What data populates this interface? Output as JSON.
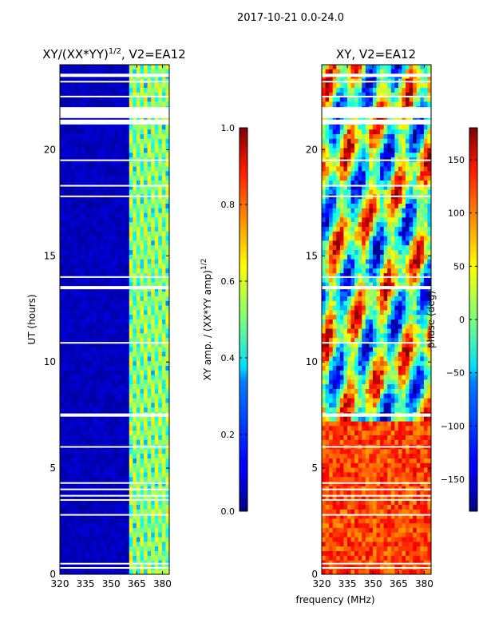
{
  "figure": {
    "suptitle": "2017-10-21 0.0-24.0"
  },
  "chart_data": [
    {
      "type": "heatmap",
      "title": "XY/(XX*YY)",
      "title_sup": "1/2",
      "title_suffix": ", V2=EA12",
      "xlabel": "",
      "ylabel": "UT (hours)",
      "xlim": [
        320,
        384
      ],
      "ylim": [
        0,
        24
      ],
      "x_ticks": [
        320,
        335,
        350,
        365,
        380
      ],
      "y_ticks": [
        0,
        5,
        10,
        15,
        20
      ],
      "colorbar": {
        "label": "XY amp. / (XX*YY amp)",
        "label_sup": "1/2",
        "range": [
          0.0,
          1.0
        ],
        "ticks": [
          "0.0",
          "0.2",
          "0.4",
          "0.6",
          "0.8",
          "1.0"
        ],
        "colormap": "jet"
      },
      "description_values": {
        "low_band_mhz": [
          320,
          361
        ],
        "low_band_value": 0.05,
        "high_band_mhz": [
          361,
          384
        ],
        "high_band_value_range": [
          0.2,
          0.6
        ]
      },
      "flagged_ut_hours": [
        0.3,
        0.5,
        2.8,
        3.5,
        3.7,
        4.0,
        4.3,
        6.0,
        7.5,
        10.9,
        13.5,
        14.0,
        17.8,
        18.3,
        19.5,
        21.3,
        21.6,
        22.5,
        23.2,
        23.5
      ]
    },
    {
      "type": "heatmap",
      "title": "XY, V2=EA12",
      "xlabel": "frequency (MHz)",
      "ylabel": "",
      "xlim": [
        320,
        384
      ],
      "ylim": [
        0,
        24
      ],
      "x_ticks": [
        320,
        335,
        350,
        365,
        380
      ],
      "y_ticks": [
        0,
        5,
        10,
        15,
        20
      ],
      "colorbar": {
        "label": "phase (deg)",
        "range": [
          -180,
          180
        ],
        "ticks": [
          "−150",
          "−100",
          "−50",
          "0",
          "50",
          "100",
          "150"
        ],
        "tick_values": [
          -150,
          -100,
          -50,
          0,
          50,
          100,
          150
        ],
        "colormap": "jet"
      },
      "flagged_ut_hours": [
        0.3,
        0.5,
        2.8,
        3.5,
        3.7,
        4.0,
        4.3,
        6.0,
        7.5,
        10.9,
        13.5,
        14.0,
        17.8,
        18.3,
        19.5,
        21.3,
        21.6,
        22.5,
        23.2,
        23.5
      ]
    }
  ]
}
